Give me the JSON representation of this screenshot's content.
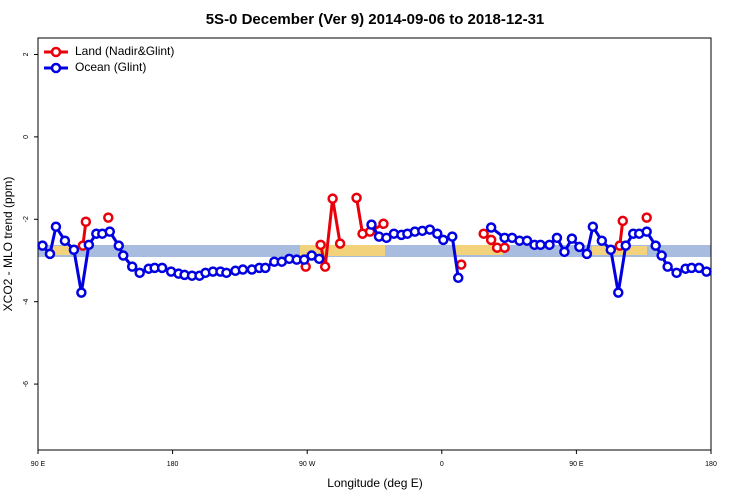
{
  "chart_data": {
    "type": "line",
    "title": "5S-0 December (Ver 9)   2014-09-06 to 2018-12-31",
    "x_label": "Longitude (deg E)",
    "y_label": "XCO2 - MLO trend (ppm)",
    "xlim": [
      90,
      540
    ],
    "ylim": [
      -7.6,
      2.4
    ],
    "xticks": [
      {
        "value": 90,
        "label": "90 E"
      },
      {
        "value": 180,
        "label": "180"
      },
      {
        "value": 270,
        "label": "90 W"
      },
      {
        "value": 360,
        "label": "0"
      },
      {
        "value": 450,
        "label": "90 E"
      },
      {
        "value": 540,
        "label": "180"
      }
    ],
    "yticks": [
      2,
      0,
      -2,
      -4,
      -6
    ],
    "legend": "top-left",
    "series": [
      {
        "name": "Land (Nadir&Glint)",
        "color": "#e8000b",
        "x": [
          120,
          122,
          125,
          137,
          200,
          269,
          274,
          279,
          282,
          287,
          292,
          298,
          303,
          307,
          312,
          321,
          340,
          373,
          380,
          388,
          393,
          397,
          402,
          450,
          479,
          481,
          490,
          497
        ],
        "values": [
          -2.64,
          -2.06,
          null,
          -1.96,
          null,
          -3.15,
          null,
          -2.62,
          -3.15,
          -1.5,
          -2.59,
          null,
          -1.48,
          -2.35,
          -2.3,
          -2.11,
          null,
          -3.1,
          null,
          -2.35,
          -2.5,
          -2.69,
          -2.69,
          null,
          -2.64,
          -2.04,
          null,
          -1.96
        ]
      },
      {
        "name": "Ocean (Glint)",
        "color": "#0000e0",
        "x": [
          93,
          98,
          102,
          108,
          114,
          119,
          124,
          129,
          133,
          138,
          144,
          147,
          153,
          158,
          164,
          168,
          173,
          179,
          184,
          188,
          193,
          198,
          202,
          207,
          212,
          216,
          222,
          227,
          233,
          238,
          242,
          248,
          253,
          258,
          263,
          268,
          273,
          278,
          300,
          313,
          318,
          323,
          328,
          333,
          337,
          342,
          347,
          352,
          357,
          361,
          367,
          371,
          382,
          393,
          402,
          407,
          412,
          417,
          422,
          426,
          432,
          437,
          442,
          447,
          452,
          457,
          461,
          467,
          473,
          478,
          483,
          488,
          492,
          497,
          503,
          507,
          511,
          517,
          523,
          527,
          532,
          537
        ],
        "values": [
          -2.64,
          -2.84,
          -2.18,
          -2.52,
          -2.74,
          -3.78,
          -2.62,
          -2.35,
          -2.35,
          -2.3,
          -2.64,
          -2.88,
          -3.15,
          -3.3,
          -3.2,
          -3.18,
          -3.18,
          -3.27,
          -3.32,
          -3.35,
          -3.37,
          -3.37,
          -3.3,
          -3.27,
          -3.27,
          -3.3,
          -3.25,
          -3.22,
          -3.22,
          -3.18,
          -3.18,
          -3.03,
          -3.03,
          -2.96,
          -2.98,
          -2.98,
          -2.88,
          -2.96,
          null,
          -2.13,
          -2.42,
          -2.45,
          -2.35,
          -2.38,
          -2.35,
          -2.3,
          -2.28,
          -2.25,
          -2.35,
          -2.5,
          -2.42,
          -3.42,
          null,
          -2.2,
          -2.45,
          -2.45,
          -2.52,
          -2.52,
          -2.62,
          -2.62,
          -2.62,
          -2.45,
          -2.79,
          -2.47,
          -2.67,
          -2.84,
          -2.18,
          -2.52,
          -2.74,
          -3.78,
          -2.64,
          -2.35,
          -2.35,
          -2.3,
          -2.64,
          -2.88,
          -3.15,
          -3.3,
          -3.2,
          -3.18,
          -3.18,
          -3.27
        ]
      }
    ]
  }
}
